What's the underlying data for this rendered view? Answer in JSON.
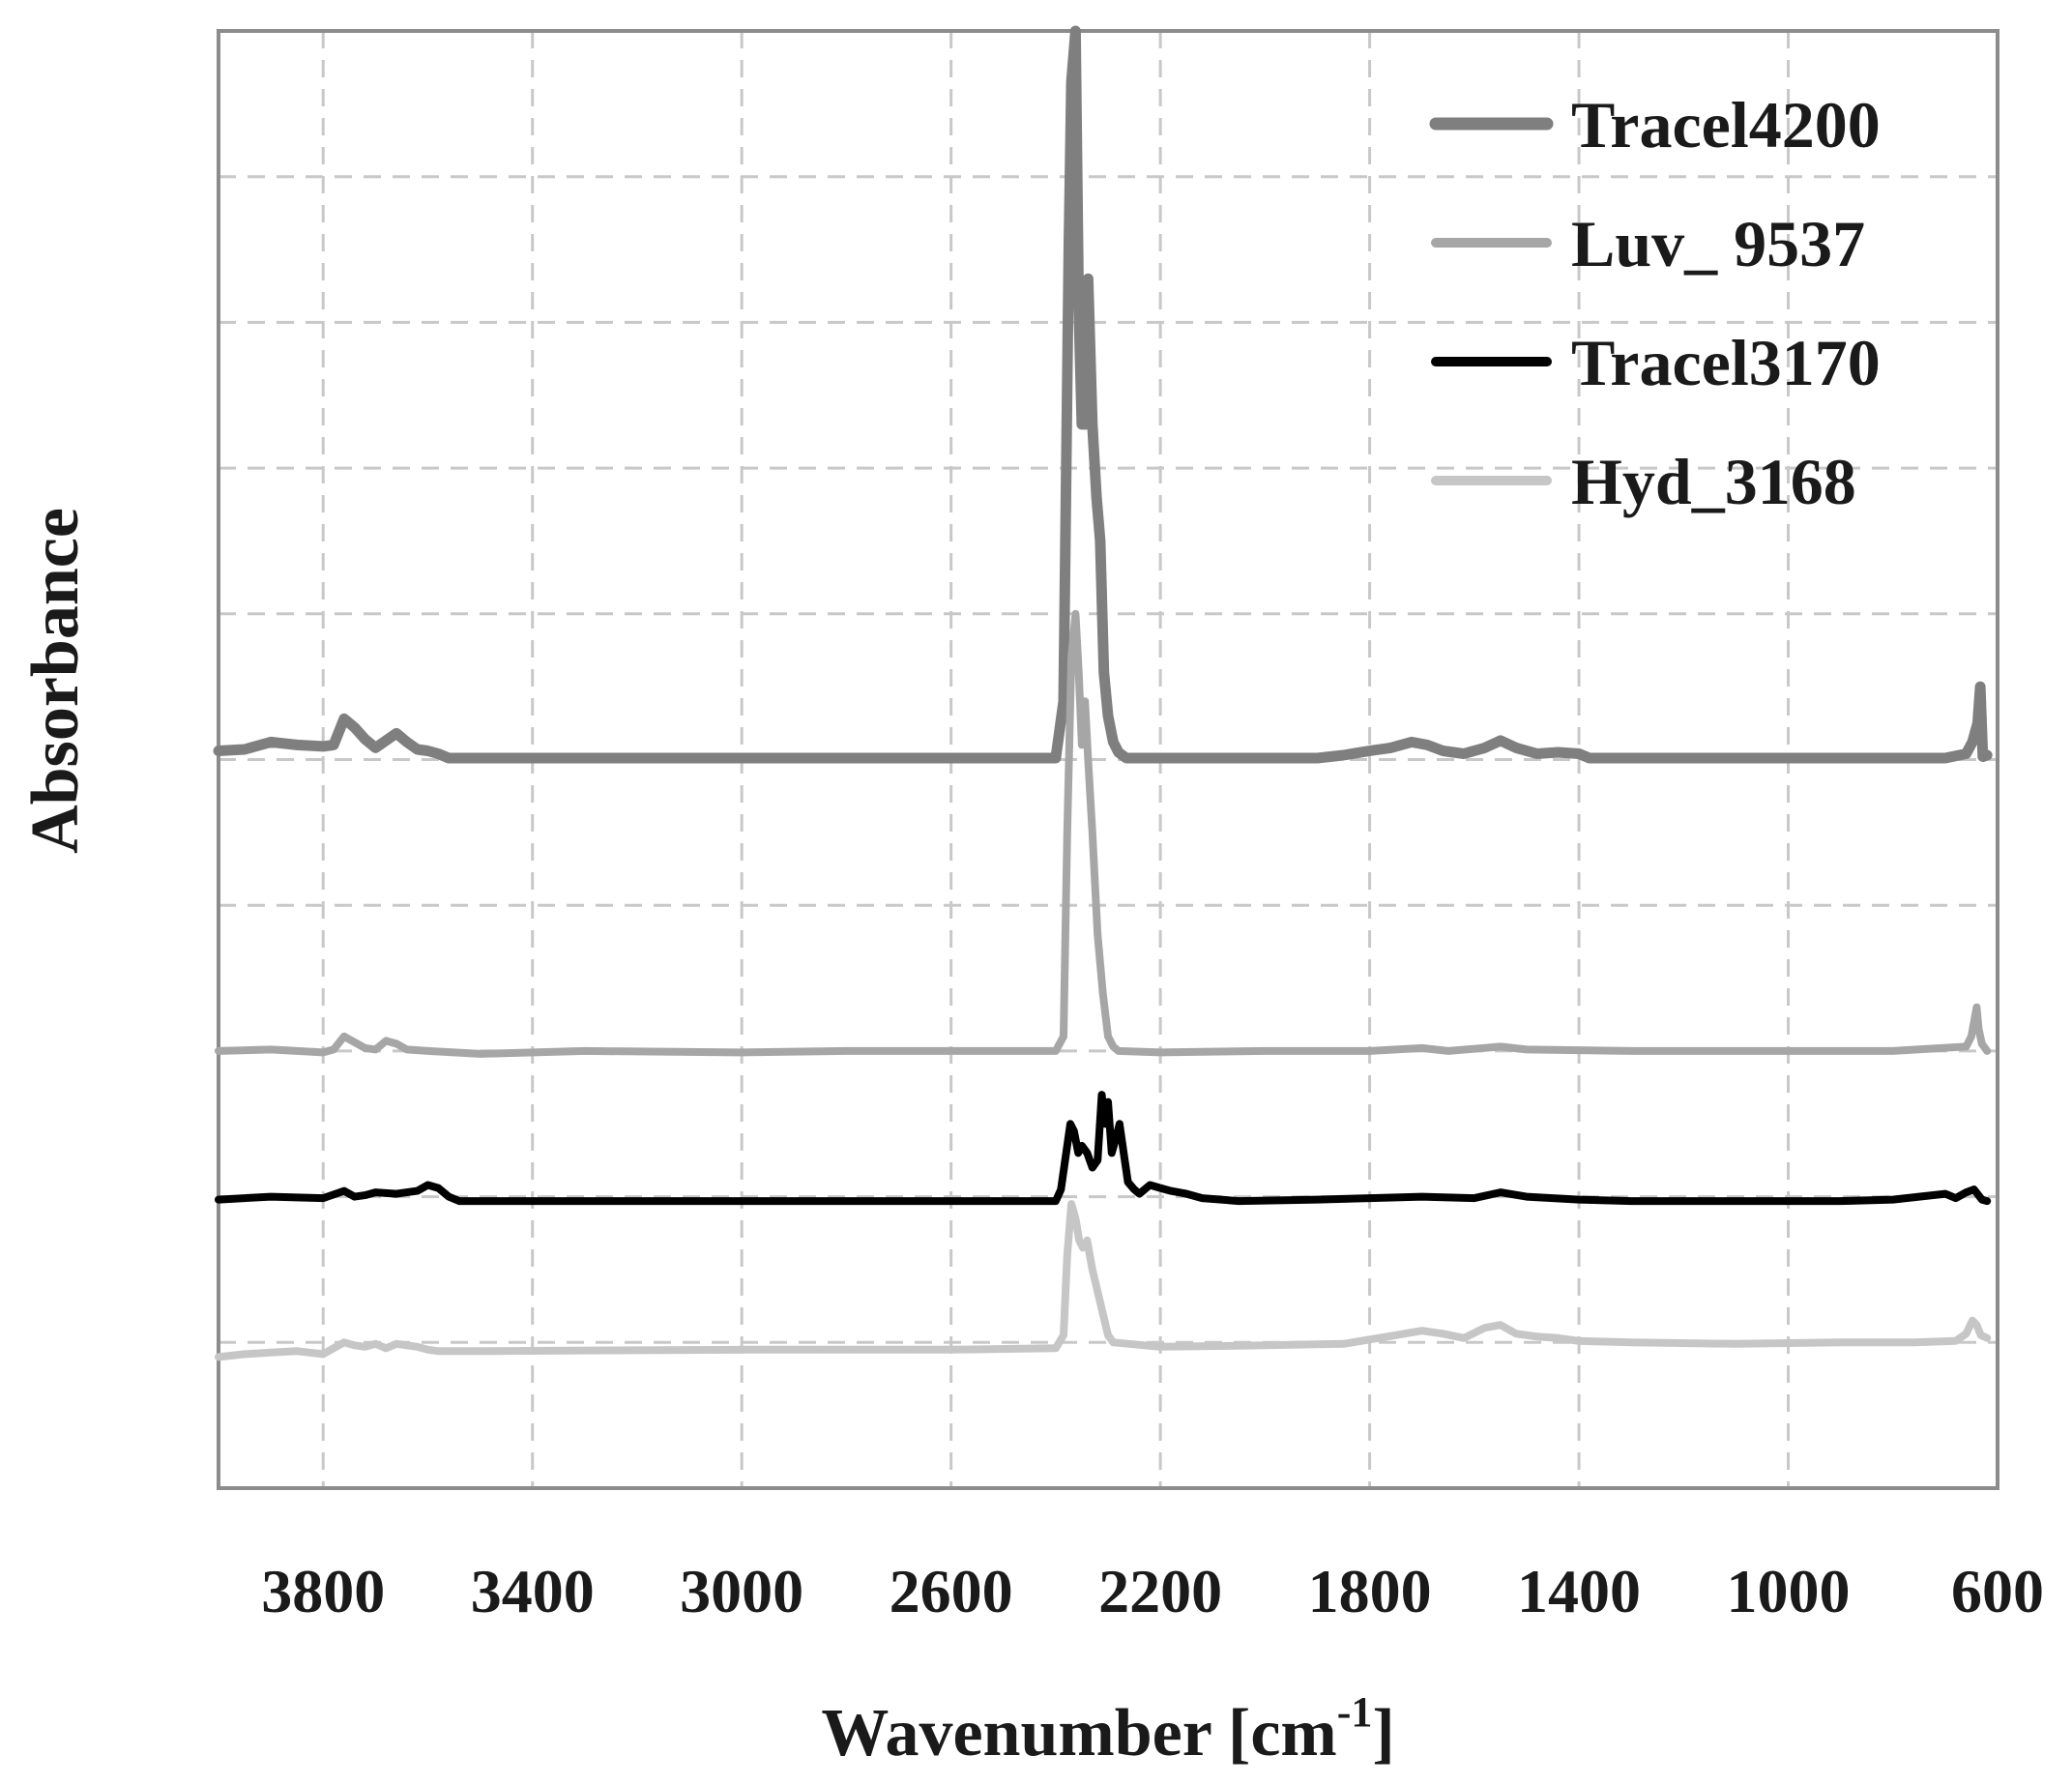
{
  "chart_data": {
    "type": "line",
    "title": "",
    "xlabel": "Wavenumber [cm",
    "xlabel_sup": "-1",
    "xlabel_suffix": "]",
    "ylabel": "Absorbance",
    "xlim": [
      4000,
      600
    ],
    "x_reversed": true,
    "ylim": [
      0,
      10
    ],
    "y_tick_labels_shown": false,
    "x_ticks": [
      3800,
      3400,
      3000,
      2600,
      2200,
      1800,
      1400,
      1000,
      600
    ],
    "x_tick_labels": [
      "3800",
      "3400",
      "3000",
      "2600",
      "2200",
      "1800",
      "1400",
      "1000",
      "600"
    ],
    "y_gridlines": [
      1,
      2,
      3,
      4,
      5,
      6,
      7,
      8,
      9
    ],
    "grid": true,
    "legend_position": "top-right",
    "series": [
      {
        "name": "Tracel4200",
        "color": "#7f7f7f",
        "width": 11,
        "points": [
          [
            4000,
            5.06
          ],
          [
            3950,
            5.07
          ],
          [
            3900,
            5.12
          ],
          [
            3850,
            5.1
          ],
          [
            3800,
            5.09
          ],
          [
            3780,
            5.1
          ],
          [
            3760,
            5.28
          ],
          [
            3740,
            5.22
          ],
          [
            3720,
            5.14
          ],
          [
            3700,
            5.08
          ],
          [
            3680,
            5.13
          ],
          [
            3660,
            5.18
          ],
          [
            3640,
            5.12
          ],
          [
            3620,
            5.07
          ],
          [
            3600,
            5.06
          ],
          [
            3580,
            5.04
          ],
          [
            3560,
            5.01
          ],
          [
            3500,
            5.01
          ],
          [
            2400,
            5.01
          ],
          [
            2385,
            5.4
          ],
          [
            2375,
            8.5
          ],
          [
            2370,
            9.65
          ],
          [
            2362,
            10.0
          ],
          [
            2356,
            8.1
          ],
          [
            2350,
            7.3
          ],
          [
            2343,
            7.3
          ],
          [
            2338,
            8.3
          ],
          [
            2330,
            7.3
          ],
          [
            2322,
            6.8
          ],
          [
            2315,
            6.5
          ],
          [
            2308,
            5.6
          ],
          [
            2300,
            5.3
          ],
          [
            2290,
            5.12
          ],
          [
            2280,
            5.05
          ],
          [
            2265,
            5.01
          ],
          [
            1900,
            5.01
          ],
          [
            1850,
            5.03
          ],
          [
            1800,
            5.06
          ],
          [
            1760,
            5.08
          ],
          [
            1720,
            5.12
          ],
          [
            1690,
            5.1
          ],
          [
            1660,
            5.06
          ],
          [
            1620,
            5.04
          ],
          [
            1580,
            5.08
          ],
          [
            1550,
            5.13
          ],
          [
            1520,
            5.08
          ],
          [
            1480,
            5.04
          ],
          [
            1440,
            5.05
          ],
          [
            1400,
            5.04
          ],
          [
            1380,
            5.01
          ],
          [
            700,
            5.01
          ],
          [
            660,
            5.04
          ],
          [
            648,
            5.12
          ],
          [
            638,
            5.25
          ],
          [
            633,
            5.5
          ],
          [
            628,
            5.02
          ],
          [
            620,
            5.03
          ]
        ]
      },
      {
        "name": "Luv_ 9537",
        "color": "#a6a6a6",
        "width": 8,
        "points": [
          [
            4000,
            3.0
          ],
          [
            3900,
            3.01
          ],
          [
            3800,
            2.99
          ],
          [
            3780,
            3.01
          ],
          [
            3760,
            3.1
          ],
          [
            3740,
            3.06
          ],
          [
            3720,
            3.02
          ],
          [
            3700,
            3.01
          ],
          [
            3680,
            3.07
          ],
          [
            3660,
            3.05
          ],
          [
            3640,
            3.01
          ],
          [
            3600,
            3.0
          ],
          [
            3500,
            2.98
          ],
          [
            3300,
            3.0
          ],
          [
            3000,
            2.99
          ],
          [
            2800,
            3.0
          ],
          [
            2400,
            3.0
          ],
          [
            2385,
            3.1
          ],
          [
            2378,
            4.5
          ],
          [
            2370,
            5.7
          ],
          [
            2362,
            6.0
          ],
          [
            2356,
            5.6
          ],
          [
            2350,
            5.1
          ],
          [
            2344,
            5.4
          ],
          [
            2338,
            5.0
          ],
          [
            2330,
            4.5
          ],
          [
            2320,
            3.8
          ],
          [
            2310,
            3.4
          ],
          [
            2300,
            3.1
          ],
          [
            2290,
            3.03
          ],
          [
            2280,
            3.0
          ],
          [
            2200,
            2.99
          ],
          [
            2000,
            3.0
          ],
          [
            1800,
            3.0
          ],
          [
            1700,
            3.02
          ],
          [
            1650,
            3.0
          ],
          [
            1550,
            3.03
          ],
          [
            1500,
            3.01
          ],
          [
            1300,
            3.0
          ],
          [
            1000,
            3.0
          ],
          [
            800,
            3.0
          ],
          [
            660,
            3.03
          ],
          [
            650,
            3.1
          ],
          [
            640,
            3.3
          ],
          [
            636,
            3.15
          ],
          [
            630,
            3.05
          ],
          [
            620,
            3.0
          ]
        ]
      },
      {
        "name": "Tracel3170",
        "color": "#000000",
        "width": 8,
        "points": [
          [
            4000,
            1.98
          ],
          [
            3900,
            2.0
          ],
          [
            3800,
            1.99
          ],
          [
            3760,
            2.04
          ],
          [
            3740,
            2.0
          ],
          [
            3720,
            2.01
          ],
          [
            3700,
            2.03
          ],
          [
            3660,
            2.02
          ],
          [
            3620,
            2.04
          ],
          [
            3600,
            2.08
          ],
          [
            3580,
            2.06
          ],
          [
            3560,
            2.0
          ],
          [
            3540,
            1.97
          ],
          [
            3500,
            1.97
          ],
          [
            2400,
            1.97
          ],
          [
            2390,
            2.05
          ],
          [
            2380,
            2.3
          ],
          [
            2372,
            2.5
          ],
          [
            2365,
            2.45
          ],
          [
            2357,
            2.3
          ],
          [
            2350,
            2.35
          ],
          [
            2340,
            2.3
          ],
          [
            2330,
            2.2
          ],
          [
            2320,
            2.25
          ],
          [
            2312,
            2.7
          ],
          [
            2306,
            2.5
          ],
          [
            2300,
            2.65
          ],
          [
            2293,
            2.3
          ],
          [
            2285,
            2.4
          ],
          [
            2278,
            2.5
          ],
          [
            2270,
            2.3
          ],
          [
            2262,
            2.1
          ],
          [
            2250,
            2.05
          ],
          [
            2240,
            2.02
          ],
          [
            2220,
            2.08
          ],
          [
            2200,
            2.06
          ],
          [
            2180,
            2.04
          ],
          [
            2150,
            2.02
          ],
          [
            2120,
            1.99
          ],
          [
            2050,
            1.97
          ],
          [
            1900,
            1.98
          ],
          [
            1800,
            1.99
          ],
          [
            1700,
            2.0
          ],
          [
            1600,
            1.99
          ],
          [
            1550,
            2.03
          ],
          [
            1500,
            2.0
          ],
          [
            1400,
            1.98
          ],
          [
            1300,
            1.97
          ],
          [
            1100,
            1.97
          ],
          [
            900,
            1.97
          ],
          [
            800,
            1.98
          ],
          [
            700,
            2.02
          ],
          [
            680,
            1.99
          ],
          [
            660,
            2.03
          ],
          [
            645,
            2.05
          ],
          [
            630,
            1.98
          ],
          [
            620,
            1.97
          ]
        ]
      },
      {
        "name": "Hyd_3168",
        "color": "#c6c6c6",
        "width": 8,
        "points": [
          [
            4000,
            0.9
          ],
          [
            3950,
            0.92
          ],
          [
            3900,
            0.93
          ],
          [
            3850,
            0.94
          ],
          [
            3800,
            0.92
          ],
          [
            3780,
            0.96
          ],
          [
            3760,
            1.0
          ],
          [
            3740,
            0.98
          ],
          [
            3720,
            0.97
          ],
          [
            3700,
            0.99
          ],
          [
            3680,
            0.96
          ],
          [
            3660,
            0.99
          ],
          [
            3620,
            0.97
          ],
          [
            3600,
            0.95
          ],
          [
            3580,
            0.94
          ],
          [
            3500,
            0.94
          ],
          [
            3000,
            0.95
          ],
          [
            2600,
            0.95
          ],
          [
            2400,
            0.96
          ],
          [
            2385,
            1.05
          ],
          [
            2378,
            1.6
          ],
          [
            2370,
            1.95
          ],
          [
            2362,
            1.85
          ],
          [
            2355,
            1.7
          ],
          [
            2348,
            1.65
          ],
          [
            2340,
            1.7
          ],
          [
            2330,
            1.5
          ],
          [
            2320,
            1.35
          ],
          [
            2310,
            1.2
          ],
          [
            2300,
            1.05
          ],
          [
            2290,
            1.0
          ],
          [
            2200,
            0.97
          ],
          [
            2000,
            0.98
          ],
          [
            1850,
            0.99
          ],
          [
            1800,
            1.02
          ],
          [
            1750,
            1.05
          ],
          [
            1700,
            1.08
          ],
          [
            1660,
            1.06
          ],
          [
            1620,
            1.03
          ],
          [
            1580,
            1.1
          ],
          [
            1550,
            1.12
          ],
          [
            1520,
            1.06
          ],
          [
            1480,
            1.04
          ],
          [
            1440,
            1.03
          ],
          [
            1400,
            1.01
          ],
          [
            1300,
            1.0
          ],
          [
            1100,
            0.99
          ],
          [
            900,
            1.0
          ],
          [
            760,
            1.0
          ],
          [
            680,
            1.01
          ],
          [
            660,
            1.06
          ],
          [
            648,
            1.15
          ],
          [
            640,
            1.12
          ],
          [
            632,
            1.05
          ],
          [
            620,
            1.03
          ]
        ]
      }
    ]
  }
}
